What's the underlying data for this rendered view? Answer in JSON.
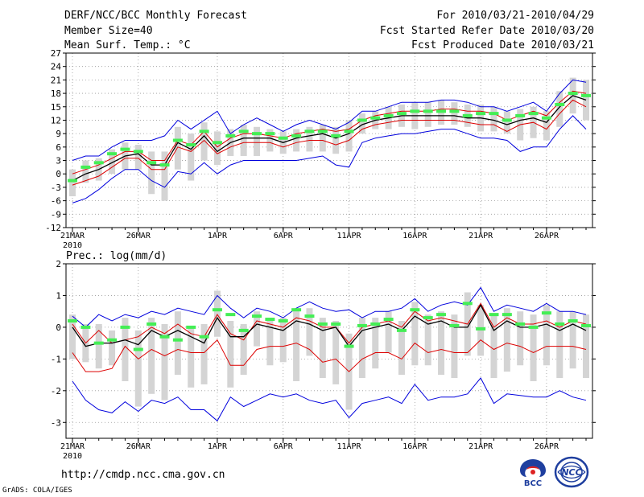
{
  "header": {
    "title": "DERF/NCC/BCC Monthly Forecast",
    "member_size": "Member Size=40",
    "variable": "Mean Surf. Temp.: °C",
    "period": "For 2010/03/21-2010/04/29",
    "fcst_started": "Fcst Started Refer Date 2010/03/20",
    "fcst_produced": "Fcst Produced Date 2010/03/21"
  },
  "footer": {
    "url": "http://cmdp.ncc.cma.gov.cn",
    "grads": "GrADS: COLA/IGES",
    "logo_bcc": "BCC",
    "logo_ncc": "NCC"
  },
  "colors": {
    "ens": "#000000",
    "inner": "#dd0000",
    "outer": "#0000dd",
    "box": "#d4d4d4",
    "obs": "#44ee55"
  },
  "chart_data": [
    {
      "type": "line",
      "title": "Mean Surf. Temp.: °C",
      "xlabel": "",
      "ylabel": "",
      "x": [
        "21MAR",
        "22MAR",
        "23MAR",
        "24MAR",
        "25MAR",
        "26MAR",
        "27MAR",
        "28MAR",
        "29MAR",
        "30MAR",
        "31MAR",
        "1APR",
        "2APR",
        "3APR",
        "4APR",
        "5APR",
        "6APR",
        "7APR",
        "8APR",
        "9APR",
        "10APR",
        "11APR",
        "12APR",
        "13APR",
        "14APR",
        "15APR",
        "16APR",
        "17APR",
        "18APR",
        "19APR",
        "20APR",
        "21APR",
        "22APR",
        "23APR",
        "24APR",
        "25APR",
        "26APR",
        "27APR",
        "28APR",
        "29APR"
      ],
      "x_ticks": [
        {
          "label": "21MAR",
          "sub": "2010",
          "index": 0
        },
        {
          "label": "26MAR",
          "index": 5
        },
        {
          "label": "1APR",
          "index": 11
        },
        {
          "label": "6APR",
          "index": 16
        },
        {
          "label": "11APR",
          "index": 21
        },
        {
          "label": "16APR",
          "index": 26
        },
        {
          "label": "21APR",
          "index": 31
        },
        {
          "label": "26APR",
          "index": 36
        }
      ],
      "ylim": [
        -12,
        27
      ],
      "yticks": [
        -12,
        -9,
        -6,
        -3,
        0,
        3,
        6,
        9,
        12,
        15,
        18,
        21,
        24,
        27
      ],
      "grid": true,
      "series": [
        {
          "name": "upper-outer",
          "values": [
            3,
            4,
            4,
            6,
            7.5,
            7.5,
            7.5,
            8.5,
            12,
            10,
            12,
            14,
            9,
            11,
            12.5,
            11,
            9.5,
            11,
            12,
            11,
            10,
            11.5,
            14,
            14,
            15,
            16,
            16,
            16,
            16.5,
            16.5,
            16,
            15,
            15,
            14,
            15,
            16,
            14,
            18,
            21,
            20.5
          ]
        },
        {
          "name": "upper-inner",
          "values": [
            0,
            1,
            2,
            3.5,
            5,
            5,
            3,
            3,
            7.5,
            6.5,
            9.5,
            6,
            8,
            9,
            9,
            8.5,
            8,
            9,
            9.5,
            10,
            9.5,
            10,
            12,
            13,
            13.5,
            14,
            14,
            14,
            14.5,
            14.5,
            14,
            14,
            13.5,
            12,
            13,
            14,
            13,
            16,
            18.5,
            18
          ]
        },
        {
          "name": "ensemble-mean",
          "values": [
            -1.5,
            0,
            1,
            2.5,
            4,
            4.5,
            2,
            2,
            7,
            5.5,
            8.5,
            5,
            7,
            8,
            8,
            8,
            7,
            8,
            8.5,
            9,
            8,
            9,
            11,
            12,
            12.5,
            13,
            13,
            13,
            13,
            13,
            12.5,
            12.5,
            12,
            11,
            12,
            12.5,
            11.5,
            15,
            17.5,
            16.5
          ]
        },
        {
          "name": "lower-inner",
          "values": [
            -2.5,
            -1.5,
            -0.5,
            1.5,
            3.5,
            3.5,
            1,
            1,
            6,
            5,
            7.5,
            4.5,
            6,
            7,
            7,
            7,
            6,
            7,
            7.5,
            7.5,
            6.5,
            7.5,
            10,
            11,
            11.5,
            12,
            12,
            12,
            12,
            12,
            11.5,
            11,
            11,
            9.5,
            11,
            11.5,
            10,
            13.5,
            16.5,
            15
          ]
        },
        {
          "name": "lower-outer",
          "values": [
            -6.5,
            -5.5,
            -3.5,
            -1,
            1,
            1,
            -1.5,
            -3,
            0.5,
            0,
            2.5,
            0,
            2,
            3,
            3,
            3,
            3,
            3,
            3.5,
            4,
            2,
            1.5,
            7,
            8,
            8.5,
            9,
            9,
            9.5,
            10,
            10,
            9,
            8,
            8,
            7.5,
            5,
            6,
            6,
            10,
            13,
            10
          ]
        },
        {
          "name": "obs",
          "values": [
            -1.5,
            1.5,
            2.5,
            4.5,
            5.5,
            5,
            2.5,
            2,
            7.5,
            6.5,
            9.5,
            7,
            8.5,
            9.5,
            9,
            9,
            8,
            8.5,
            9.5,
            9.5,
            8.5,
            9.5,
            12,
            12.5,
            13,
            13.5,
            14,
            14,
            14,
            14,
            13,
            13.5,
            13.5,
            12,
            13,
            13.5,
            12.5,
            15.5,
            18,
            17.5
          ]
        }
      ],
      "boxes_low": [
        -5,
        -2,
        -1.5,
        0,
        1,
        1,
        -4.5,
        -6,
        1,
        -1.5,
        3,
        2,
        4,
        4,
        4,
        5,
        4.5,
        5,
        5,
        5,
        4.5,
        5,
        9,
        10,
        10,
        10.5,
        10,
        10.5,
        11,
        11,
        10.5,
        9.5,
        9.5,
        9,
        7.5,
        8,
        7.5,
        10.5,
        13.5,
        12
      ],
      "boxes_high": [
        1,
        3,
        3.5,
        5.5,
        7,
        6.5,
        5,
        5,
        10.5,
        9,
        11.5,
        9.5,
        10,
        11,
        10.5,
        10,
        9.5,
        10,
        10.5,
        11,
        10.5,
        12,
        13.5,
        14,
        15,
        15.5,
        16,
        16,
        16.5,
        16,
        15.5,
        15.5,
        15,
        14,
        14.5,
        15,
        14,
        18.5,
        21.5,
        21
      ]
    },
    {
      "type": "line",
      "title": "Prec.: log(mm/d)",
      "xlabel": "",
      "ylabel": "",
      "x": [
        "21MAR",
        "22MAR",
        "23MAR",
        "24MAR",
        "25MAR",
        "26MAR",
        "27MAR",
        "28MAR",
        "29MAR",
        "30MAR",
        "31MAR",
        "1APR",
        "2APR",
        "3APR",
        "4APR",
        "5APR",
        "6APR",
        "7APR",
        "8APR",
        "9APR",
        "10APR",
        "11APR",
        "12APR",
        "13APR",
        "14APR",
        "15APR",
        "16APR",
        "17APR",
        "18APR",
        "19APR",
        "20APR",
        "21APR",
        "22APR",
        "23APR",
        "24APR",
        "25APR",
        "26APR",
        "27APR",
        "28APR",
        "29APR"
      ],
      "x_ticks": [
        {
          "label": "21MAR",
          "sub": "2010",
          "index": 0
        },
        {
          "label": "26MAR",
          "index": 5
        },
        {
          "label": "1APR",
          "index": 11
        },
        {
          "label": "6APR",
          "index": 16
        },
        {
          "label": "11APR",
          "index": 21
        },
        {
          "label": "16APR",
          "index": 26
        },
        {
          "label": "21APR",
          "index": 31
        },
        {
          "label": "26APR",
          "index": 36
        }
      ],
      "ylim": [
        -3.5,
        2
      ],
      "yticks": [
        -3,
        -2,
        -1,
        0,
        1,
        2
      ],
      "grid": true,
      "series": [
        {
          "name": "upper-outer",
          "values": [
            0.35,
            0,
            0.4,
            0.2,
            0.4,
            0.3,
            0.5,
            0.4,
            0.6,
            0.5,
            0.4,
            1,
            0.6,
            0.3,
            0.6,
            0.5,
            0.3,
            0.6,
            0.8,
            0.6,
            0.5,
            0.55,
            0.3,
            0.5,
            0.5,
            0.6,
            0.9,
            0.5,
            0.7,
            0.8,
            0.7,
            1.25,
            0.5,
            0.7,
            0.6,
            0.5,
            0.75,
            0.5,
            0.5,
            0.4
          ]
        },
        {
          "name": "upper-inner",
          "values": [
            0.1,
            -0.5,
            -0.1,
            -0.5,
            -0.4,
            -0.3,
            0,
            -0.2,
            0.1,
            -0.2,
            -0.3,
            0.4,
            -0.2,
            -0.4,
            0.2,
            0.1,
            0,
            0.3,
            0.2,
            0,
            0,
            -0.5,
            0,
            0.1,
            0.2,
            0,
            0.5,
            0.2,
            0.3,
            0.2,
            0.1,
            0.75,
            0,
            0.3,
            0.1,
            0.1,
            0.2,
            0,
            0.2,
            0.1
          ]
        },
        {
          "name": "ensemble-mean",
          "values": [
            0,
            -0.6,
            -0.5,
            -0.5,
            -0.4,
            -0.55,
            -0.1,
            -0.3,
            -0.1,
            -0.3,
            -0.5,
            0.3,
            -0.3,
            -0.3,
            0.1,
            0,
            -0.1,
            0.2,
            0.1,
            -0.1,
            0,
            -0.6,
            -0.1,
            0,
            0.1,
            -0.1,
            0.35,
            0.1,
            0.2,
            0,
            0,
            0.7,
            -0.1,
            0.2,
            0,
            0,
            0.1,
            -0.1,
            0.1,
            -0.1
          ]
        },
        {
          "name": "lower-inner",
          "values": [
            -0.8,
            -1.4,
            -1.4,
            -1.3,
            -0.6,
            -1,
            -0.7,
            -0.9,
            -0.7,
            -0.8,
            -0.8,
            -0.4,
            -1.2,
            -1.2,
            -0.7,
            -0.6,
            -0.6,
            -0.5,
            -0.7,
            -1.1,
            -1,
            -1.4,
            -1,
            -0.8,
            -0.8,
            -1,
            -0.5,
            -0.8,
            -0.7,
            -0.8,
            -0.8,
            -0.4,
            -0.7,
            -0.5,
            -0.6,
            -0.8,
            -0.6,
            -0.6,
            -0.6,
            -0.7
          ]
        },
        {
          "name": "lower-outer",
          "values": [
            -1.7,
            -2.3,
            -2.6,
            -2.7,
            -2.35,
            -2.65,
            -2.3,
            -2.4,
            -2.2,
            -2.6,
            -2.6,
            -2.95,
            -2.2,
            -2.5,
            -2.3,
            -2.1,
            -2.2,
            -2.1,
            -2.3,
            -2.4,
            -2.3,
            -2.85,
            -2.4,
            -2.3,
            -2.2,
            -2.4,
            -1.8,
            -2.3,
            -2.2,
            -2.2,
            -2.1,
            -1.6,
            -2.4,
            -2.1,
            -2.15,
            -2.2,
            -2.2,
            -2,
            -2.2,
            -2.3
          ]
        },
        {
          "name": "obs",
          "values": [
            0.2,
            0,
            -0.5,
            -0.4,
            0,
            -0.7,
            0.1,
            -0.3,
            -0.4,
            0,
            -0.3,
            0.55,
            0.4,
            -0.1,
            0.35,
            0.25,
            0.2,
            0.55,
            0.35,
            0.1,
            0.1,
            -0.6,
            0.05,
            0.1,
            0.25,
            -0.1,
            0.55,
            0.3,
            0.4,
            0.05,
            0.75,
            -0.05,
            0.4,
            0.4,
            0.1,
            0,
            0.45,
            0.1,
            0.2,
            0.05
          ]
        }
      ],
      "boxes_low": [
        -1,
        -1.1,
        -1.3,
        -1.2,
        -1.7,
        -2.5,
        -2.1,
        -2.3,
        -1.5,
        -1.9,
        -1.8,
        -0.3,
        -1.9,
        -1.5,
        -0.6,
        -1.2,
        -1.1,
        -1.7,
        -0.9,
        -1.6,
        -1.8,
        -2.6,
        -1.6,
        -1.3,
        -0.8,
        -1.5,
        -1.2,
        -1.2,
        -1.5,
        -1.6,
        -0.9,
        -0.9,
        -1.6,
        -1.4,
        -1.2,
        -1.7,
        -1.2,
        -1.6,
        -1.3,
        -1.6
      ],
      "boxes_high": [
        0.4,
        0.1,
        0.1,
        -0.1,
        0.3,
        -0.1,
        0.3,
        0.1,
        0.5,
        0,
        0.1,
        1.15,
        0.2,
        0.1,
        0.5,
        0.3,
        0.3,
        0.6,
        0.6,
        0.3,
        0.2,
        -0.2,
        0.3,
        0.3,
        0.5,
        0.2,
        0.8,
        0.4,
        0.5,
        0.4,
        1.1,
        0.7,
        0.4,
        0.6,
        0.5,
        0.4,
        0.7,
        0.5,
        0.5,
        0.4
      ]
    }
  ]
}
